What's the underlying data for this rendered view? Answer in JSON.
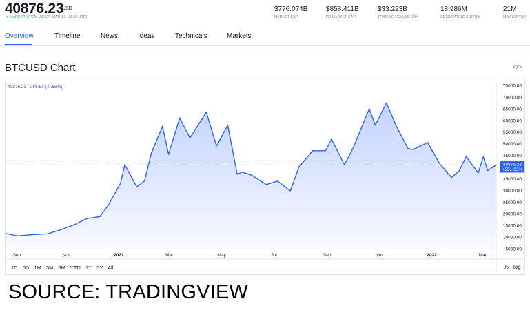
{
  "header": {
    "price": "40876.23",
    "price_unit": "USD",
    "market_status": "MARKET OPEN",
    "as_of": "(AS OF MAR 17, 09:36 UTC)",
    "stats": [
      {
        "value": "$776.074B",
        "label": "MARKET CAP"
      },
      {
        "value": "$858.411B",
        "label": "FD MARKET CAP"
      },
      {
        "value": "$33.223B",
        "label": "TRADING VOLUME 24H"
      },
      {
        "value": "18.986M",
        "label": "CIRCULATING SUPPLY"
      },
      {
        "value": "21M",
        "label": "MAX SUPPLY"
      }
    ]
  },
  "tabs": [
    "Overview",
    "Timeline",
    "News",
    "Ideas",
    "Technicals",
    "Markets"
  ],
  "chart_title": "BTCUSD Chart",
  "embed_icon": "code-embed-icon",
  "legend": {
    "last": "40876.23",
    "change": "-266.53 (-0.65%)"
  },
  "price_badge": {
    "value": "40876.23",
    "change": "+251.03%"
  },
  "range_buttons": [
    "1D",
    "5D",
    "1M",
    "3M",
    "6M",
    "YTD",
    "1Y",
    "5Y",
    "All"
  ],
  "scale_buttons": {
    "percent": "%",
    "log": "log"
  },
  "source": "SOURCE: TRADINGVIEW",
  "colors": {
    "line": "#2962ff",
    "accent": "#2962ff"
  },
  "chart_data": {
    "type": "area",
    "title": "BTCUSD Chart",
    "x_tick_labels": [
      "Sep",
      "Nov",
      "2021",
      "Mar",
      "May",
      "Jul",
      "Sep",
      "Nov",
      "2022",
      "Mar"
    ],
    "y_tick_labels": [
      "75000.00",
      "70000.00",
      "65000.00",
      "60000.00",
      "55000.00",
      "50000.00",
      "45000.00",
      "40000.00",
      "35000.00",
      "30000.00",
      "25000.00",
      "20000.00",
      "15000.00",
      "10000.00",
      "5000.00"
    ],
    "ylim": [
      5000,
      75000
    ],
    "xlim": [
      "2020-08-22",
      "2022-03-17"
    ],
    "series": [
      {
        "x": [
          "2020-08-22",
          "2020-09-05",
          "2020-09-20",
          "2020-10-10",
          "2020-10-25",
          "2020-11-10",
          "2020-11-25",
          "2020-12-10",
          "2020-12-20",
          "2021-01-03",
          "2021-01-08",
          "2021-01-22",
          "2021-01-31",
          "2021-02-08",
          "2021-02-21",
          "2021-02-28",
          "2021-03-13",
          "2021-03-25",
          "2021-04-13",
          "2021-04-25",
          "2021-05-08",
          "2021-05-19",
          "2021-05-25",
          "2021-06-05",
          "2021-06-22",
          "2021-07-05",
          "2021-07-20",
          "2021-07-30",
          "2021-08-15",
          "2021-08-30",
          "2021-09-06",
          "2021-09-21",
          "2021-10-01",
          "2021-10-20",
          "2021-10-27",
          "2021-11-09",
          "2021-11-20",
          "2021-12-04",
          "2021-12-10",
          "2021-12-27",
          "2022-01-10",
          "2022-01-24",
          "2022-02-02",
          "2022-02-10",
          "2022-02-24",
          "2022-03-02",
          "2022-03-07",
          "2022-03-17"
        ],
        "y": [
          11600,
          10500,
          11000,
          11400,
          13100,
          15300,
          18000,
          18800,
          23800,
          33000,
          41000,
          31500,
          34000,
          46000,
          57500,
          45500,
          61000,
          52500,
          63500,
          49000,
          58000,
          37000,
          37800,
          36500,
          32500,
          34000,
          29800,
          40000,
          47000,
          47000,
          52000,
          41000,
          48000,
          65000,
          58000,
          67500,
          58000,
          48000,
          47500,
          50500,
          41500,
          35500,
          38500,
          44500,
          37500,
          44500,
          38500,
          40876
        ]
      }
    ]
  }
}
